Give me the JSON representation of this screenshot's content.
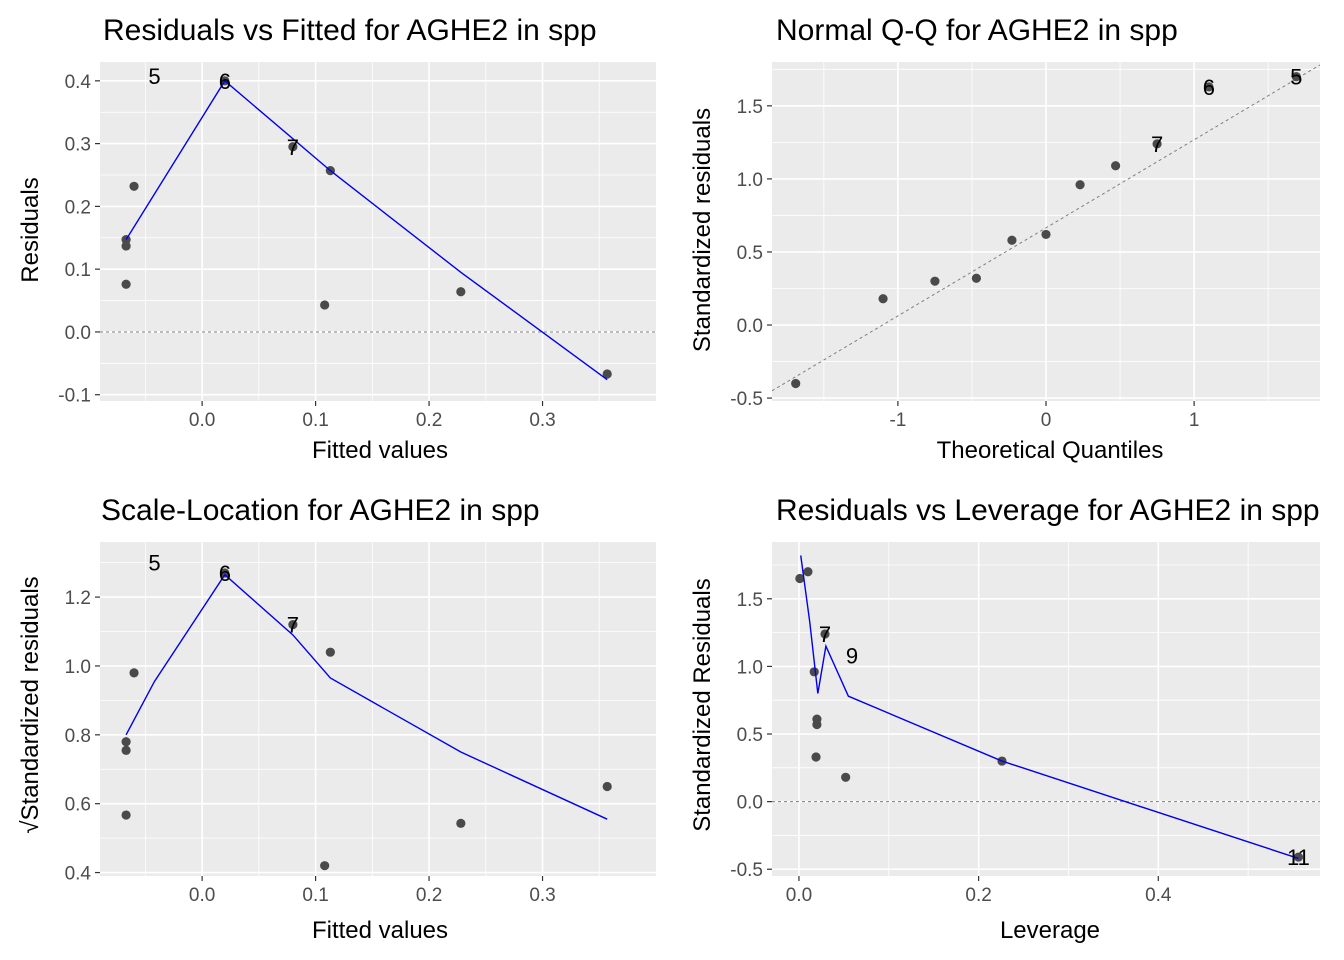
{
  "chart_data": [
    {
      "type": "scatter",
      "title": "Residuals vs Fitted for AGHE2 in spp",
      "xlabel": "Fitted values",
      "ylabel": "Residuals",
      "xlim": [
        -0.09,
        0.4
      ],
      "ylim": [
        -0.11,
        0.43
      ],
      "x_ticks": [
        0.0,
        0.1,
        0.2,
        0.3
      ],
      "x_tick_labels": [
        "0.0",
        "0.1",
        "0.2",
        "0.3"
      ],
      "y_ticks": [
        -0.1,
        0.0,
        0.1,
        0.2,
        0.3,
        0.4
      ],
      "y_tick_labels": [
        "-0.1",
        "0.0",
        "0.1",
        "0.2",
        "0.3",
        "0.4"
      ],
      "grid": true,
      "reference_line": {
        "style": "dashed",
        "y": 0.0
      },
      "points": [
        {
          "x": -0.067,
          "y": 0.147
        },
        {
          "x": -0.067,
          "y": 0.137
        },
        {
          "x": -0.067,
          "y": 0.076
        },
        {
          "x": -0.06,
          "y": 0.232
        },
        {
          "x": 0.108,
          "y": 0.043
        },
        {
          "x": 0.113,
          "y": 0.257
        },
        {
          "x": 0.228,
          "y": 0.064
        },
        {
          "x": 0.357,
          "y": -0.067
        },
        {
          "x": 0.02,
          "y": 0.4
        },
        {
          "x": 0.08,
          "y": 0.295
        }
      ],
      "point_labels": [
        {
          "text": "5",
          "x": -0.042,
          "y": 0.408
        },
        {
          "text": "6",
          "x": 0.02,
          "y": 0.4
        },
        {
          "text": "7",
          "x": 0.08,
          "y": 0.295
        }
      ],
      "smooth_line": {
        "x": [
          -0.067,
          0.02,
          0.113,
          0.228,
          0.357
        ],
        "y": [
          0.147,
          0.4,
          0.257,
          0.095,
          -0.076
        ]
      }
    },
    {
      "type": "scatter",
      "title": "Normal Q-Q for AGHE2 in spp",
      "xlabel": "Theoretical Quantiles",
      "ylabel": "Standardized residuals",
      "xlim": [
        -1.85,
        1.85
      ],
      "ylim": [
        -0.52,
        1.8
      ],
      "x_ticks": [
        -1,
        0,
        1
      ],
      "x_tick_labels": [
        "-1",
        "0",
        "1"
      ],
      "y_ticks": [
        -0.5,
        0.0,
        0.5,
        1.0,
        1.5
      ],
      "y_tick_labels": [
        "-0.5",
        "0.0",
        "0.5",
        "1.0",
        "1.5"
      ],
      "grid": true,
      "reference_line": {
        "style": "dashed",
        "x": [
          -1.85,
          1.85
        ],
        "y": [
          -0.45,
          1.78
        ]
      },
      "points": [
        {
          "x": -1.69,
          "y": -0.4
        },
        {
          "x": -1.1,
          "y": 0.18
        },
        {
          "x": -0.75,
          "y": 0.3
        },
        {
          "x": -0.47,
          "y": 0.32
        },
        {
          "x": -0.23,
          "y": 0.58
        },
        {
          "x": 0.0,
          "y": 0.62
        },
        {
          "x": 0.23,
          "y": 0.96
        },
        {
          "x": 0.47,
          "y": 1.09
        },
        {
          "x": 0.75,
          "y": 1.24
        },
        {
          "x": 1.1,
          "y": 1.63
        },
        {
          "x": 1.69,
          "y": 1.7
        }
      ],
      "point_labels": [
        {
          "text": "6",
          "x": 1.1,
          "y": 1.63
        },
        {
          "text": "5",
          "x": 1.69,
          "y": 1.7
        },
        {
          "text": "7",
          "x": 0.75,
          "y": 1.24
        }
      ]
    },
    {
      "type": "scatter",
      "title": "Scale-Location for AGHE2 in spp",
      "xlabel": "Fitted values",
      "ylabel": "√Standardized residuals",
      "xlim": [
        -0.09,
        0.4
      ],
      "ylim": [
        0.39,
        1.36
      ],
      "x_ticks": [
        0.0,
        0.1,
        0.2,
        0.3
      ],
      "x_tick_labels": [
        "0.0",
        "0.1",
        "0.2",
        "0.3"
      ],
      "y_ticks": [
        0.4,
        0.6,
        0.8,
        1.0,
        1.2
      ],
      "y_tick_labels": [
        "0.4",
        "0.6",
        "0.8",
        "1.0",
        "1.2"
      ],
      "grid": true,
      "points": [
        {
          "x": -0.067,
          "y": 0.78
        },
        {
          "x": -0.067,
          "y": 0.755
        },
        {
          "x": -0.067,
          "y": 0.567
        },
        {
          "x": -0.06,
          "y": 0.98
        },
        {
          "x": 0.108,
          "y": 0.42
        },
        {
          "x": 0.113,
          "y": 1.04
        },
        {
          "x": 0.228,
          "y": 0.543
        },
        {
          "x": 0.357,
          "y": 0.65
        },
        {
          "x": 0.02,
          "y": 1.27
        },
        {
          "x": 0.08,
          "y": 1.12
        }
      ],
      "point_labels": [
        {
          "text": "5",
          "x": -0.042,
          "y": 1.3
        },
        {
          "text": "6",
          "x": 0.02,
          "y": 1.27
        },
        {
          "text": "7",
          "x": 0.08,
          "y": 1.12
        }
      ],
      "smooth_line": {
        "x": [
          -0.067,
          -0.042,
          0.02,
          0.08,
          0.113,
          0.228,
          0.357
        ],
        "y": [
          0.8,
          0.955,
          1.265,
          1.09,
          0.965,
          0.75,
          0.555
        ]
      }
    },
    {
      "type": "scatter",
      "title": "Residuals vs Leverage for AGHE2 in spp",
      "xlabel": "Leverage",
      "ylabel": "Standardized Residuals",
      "xlim": [
        -0.03,
        0.58
      ],
      "ylim": [
        -0.55,
        1.92
      ],
      "x_ticks": [
        0.0,
        0.2,
        0.4
      ],
      "x_tick_labels": [
        "0.0",
        "0.2",
        "0.4"
      ],
      "y_ticks": [
        -0.5,
        0.0,
        0.5,
        1.0,
        1.5
      ],
      "y_tick_labels": [
        "-0.5",
        "0.0",
        "0.5",
        "1.0",
        "1.5"
      ],
      "grid": true,
      "reference_line": {
        "style": "dashed",
        "y": 0.0
      },
      "points": [
        {
          "x": 0.001,
          "y": 1.65
        },
        {
          "x": 0.01,
          "y": 1.7
        },
        {
          "x": 0.017,
          "y": 0.96
        },
        {
          "x": 0.02,
          "y": 0.61
        },
        {
          "x": 0.02,
          "y": 0.57
        },
        {
          "x": 0.019,
          "y": 0.33
        },
        {
          "x": 0.052,
          "y": 0.18
        },
        {
          "x": 0.029,
          "y": 1.24
        },
        {
          "x": 0.226,
          "y": 0.3
        },
        {
          "x": 0.556,
          "y": -0.41
        }
      ],
      "point_labels": [
        {
          "text": "7",
          "x": 0.029,
          "y": 1.24
        },
        {
          "text": "9",
          "x": 0.059,
          "y": 1.08
        },
        {
          "text": "11",
          "x": 0.556,
          "y": -0.41
        }
      ],
      "smooth_line": {
        "x": [
          0.002,
          0.012,
          0.021,
          0.03,
          0.055,
          0.226,
          0.556
        ],
        "y": [
          1.82,
          1.33,
          0.8,
          1.15,
          0.78,
          0.3,
          -0.42
        ]
      }
    }
  ]
}
